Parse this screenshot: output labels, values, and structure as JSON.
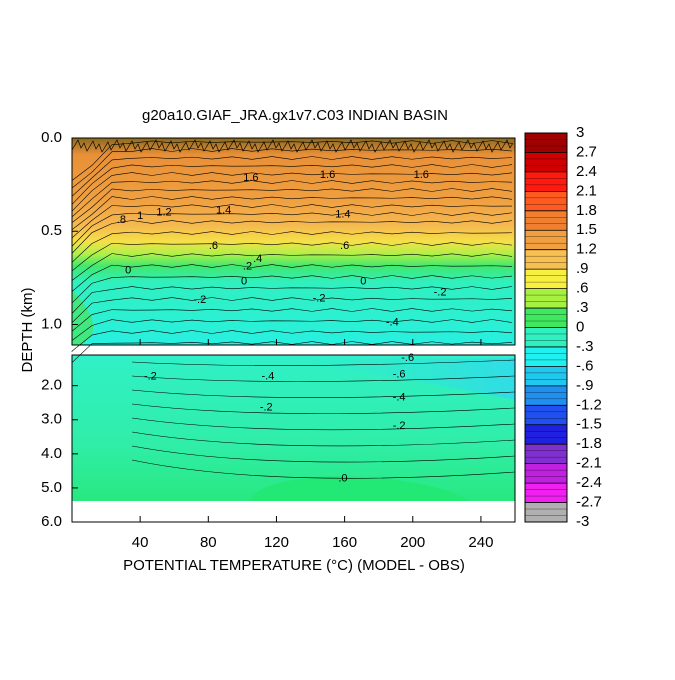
{
  "chart_data": {
    "type": "contour",
    "title": "g20a10.GIAF_JRA.gx1v7.C03 INDIAN BASIN",
    "xlabel": "POTENTIAL TEMPERATURE (°C) (MODEL - OBS)",
    "ylabel": "DEPTH (km)",
    "xlim": [
      0,
      260
    ],
    "xticks": [
      40,
      80,
      120,
      160,
      200,
      240
    ],
    "panels": [
      {
        "ylim": [
          0,
          1.11
        ],
        "yticks": [
          {
            "value": 0,
            "label": "0.0"
          },
          {
            "value": 0.5,
            "label": "0.5"
          },
          {
            "value": 1,
            "label": "1.0"
          }
        ]
      },
      {
        "ylim": [
          1.1,
          6
        ],
        "yticks": [
          {
            "value": 2,
            "label": "2.0"
          },
          {
            "value": 3,
            "label": "3.0"
          },
          {
            "value": 4,
            "label": "4.0"
          },
          {
            "value": 5,
            "label": "5.0"
          },
          {
            "value": 6,
            "label": "6.0"
          }
        ]
      }
    ],
    "colorbar": {
      "lim": [
        -3,
        3
      ],
      "ticks": [
        3,
        2.7,
        2.4,
        2.1,
        1.8,
        1.5,
        1.2,
        {
          "value": 0.9,
          "label": ".9"
        },
        {
          "value": 0.6,
          "label": ".6"
        },
        {
          "value": 0.3,
          "label": ".3"
        },
        0,
        {
          "value": -0.3,
          "label": "-.3"
        },
        {
          "value": -0.6,
          "label": "-.6"
        },
        {
          "value": -0.9,
          "label": "-.9"
        },
        -1.2,
        -1.5,
        -1.8,
        -2.1,
        -2.4,
        -2.7,
        -3
      ],
      "colors": [
        "#a00000",
        "#d00000",
        "#ff1a10",
        "#ff5a20",
        "#f08030",
        "#f0a040",
        "#f8c050",
        "#f8f040",
        "#a8f040",
        "#40e860",
        "#30f0c0",
        "#20f0f0",
        "#20c8f0",
        "#2090f0",
        "#2050f0",
        "#2020e0",
        "#8030d0",
        "#c020e0",
        "#f020f0",
        "#b0b0b0"
      ]
    },
    "contour_labels": [
      {
        "text": "1.6",
        "x": 105,
        "y": 0.215
      },
      {
        "text": "1.6",
        "x": 150,
        "y": 0.2
      },
      {
        "text": "1.6",
        "x": 205,
        "y": 0.2
      },
      {
        "text": "1.4",
        "x": 89,
        "y": 0.39
      },
      {
        "text": "1.4",
        "x": 159,
        "y": 0.41
      },
      {
        "text": "1.2",
        "x": 54,
        "y": 0.4
      },
      {
        "text": "1",
        "x": 40,
        "y": 0.42
      },
      {
        "text": ".8",
        "x": 29,
        "y": 0.44
      },
      {
        "text": ".6",
        "x": 83,
        "y": 0.58
      },
      {
        "text": ".6",
        "x": 160,
        "y": 0.58
      },
      {
        "text": ".4",
        "x": 109,
        "y": 0.65
      },
      {
        "text": ".2",
        "x": 103,
        "y": 0.69
      },
      {
        "text": "0",
        "x": 101,
        "y": 0.77
      },
      {
        "text": "0",
        "x": 33,
        "y": 0.71
      },
      {
        "text": "0",
        "x": 171,
        "y": 0.77
      },
      {
        "text": "-.2",
        "x": 75,
        "y": 0.87
      },
      {
        "text": "-.2",
        "x": 145,
        "y": 0.86
      },
      {
        "text": "-.2",
        "x": 216,
        "y": 0.83
      },
      {
        "text": "-.4",
        "x": 188,
        "y": 0.99
      },
      {
        "text": "-.2",
        "x": 46,
        "y": 1.74
      },
      {
        "text": "-.4",
        "x": 115,
        "y": 1.74
      },
      {
        "text": "-.2",
        "x": 114,
        "y": 2.64
      },
      {
        "text": "-.6",
        "x": 192,
        "y": 1.68
      },
      {
        "text": "-.6",
        "x": 197,
        "y": 1.19
      },
      {
        "text": "-.4",
        "x": 192,
        "y": 2.35
      },
      {
        "text": "-.2",
        "x": 192,
        "y": 3.19
      },
      {
        "text": ".0",
        "x": 159,
        "y": 4.72
      }
    ]
  }
}
